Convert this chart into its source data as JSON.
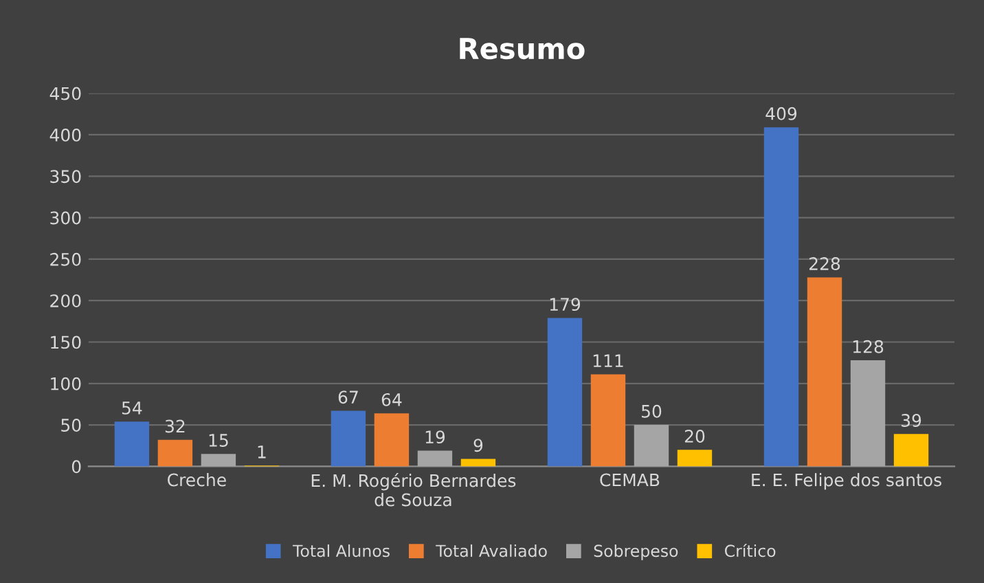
{
  "chart_data": {
    "type": "bar",
    "title": "Resumo",
    "categories": [
      "Creche",
      "E. M. Rogério Bernardes\nde Souza",
      "CEMAB",
      "E. E. Felipe dos santos"
    ],
    "series": [
      {
        "name": "Total Alunos",
        "color": "#4472c4",
        "values": [
          54,
          67,
          179,
          409
        ]
      },
      {
        "name": "Total Avaliado",
        "color": "#ed7d31",
        "values": [
          32,
          64,
          111,
          228
        ]
      },
      {
        "name": "Sobrepeso",
        "color": "#a5a5a5",
        "values": [
          15,
          19,
          50,
          128
        ]
      },
      {
        "name": "Crítico",
        "color": "#ffc000",
        "values": [
          1,
          9,
          20,
          39
        ]
      }
    ],
    "ylim": [
      0,
      450
    ],
    "yticks": [
      0,
      50,
      100,
      150,
      200,
      250,
      300,
      350,
      400,
      450
    ],
    "grid": "y",
    "legend": "bottom",
    "data_labels": true
  }
}
